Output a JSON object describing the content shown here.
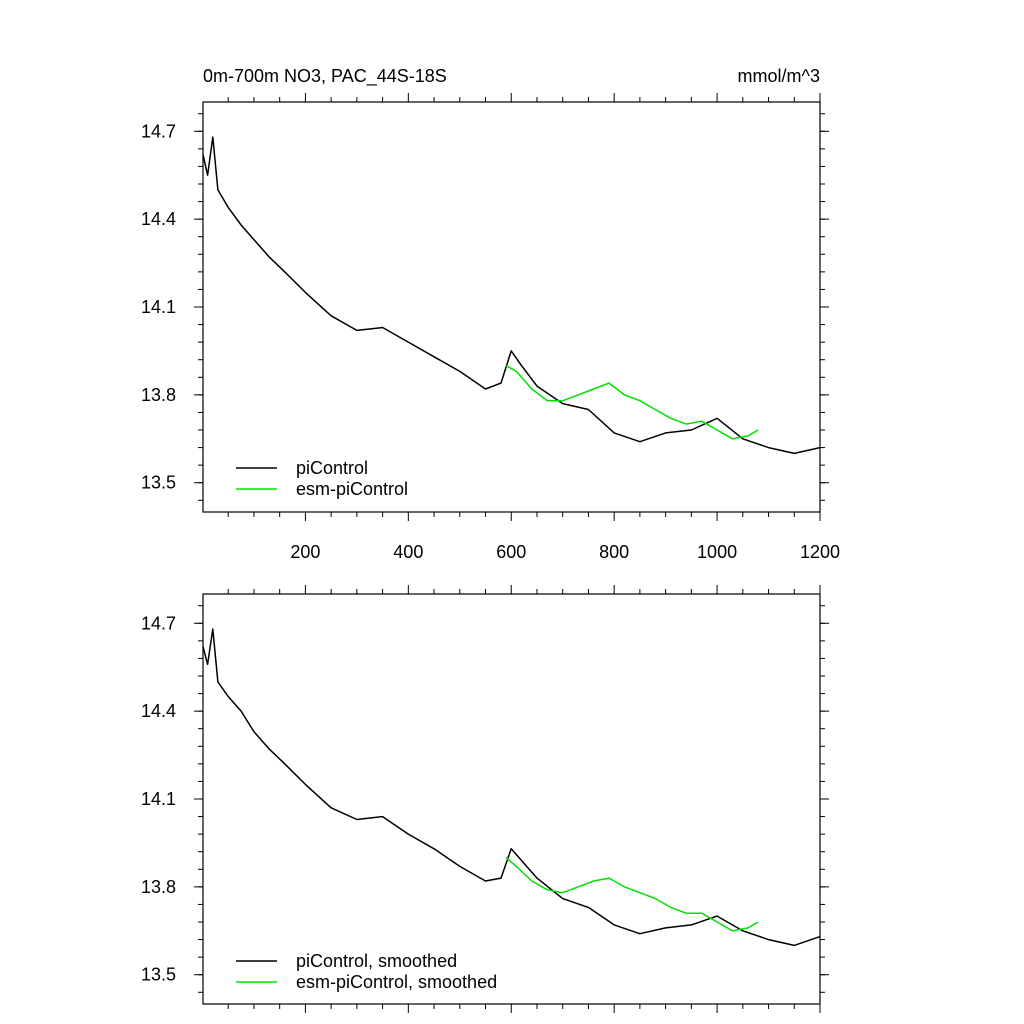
{
  "title": "0m-700m NO3, PAC_44S-18S",
  "units": "mmol/m^3",
  "colors": {
    "piControl": "#000000",
    "esm": "#00e000"
  },
  "chart_data": [
    {
      "type": "line",
      "title": "0m-700m NO3, PAC_44S-18S",
      "units": "mmol/m^3",
      "xlim": [
        1,
        1200
      ],
      "ylim": [
        13.4,
        14.8
      ],
      "xticks": [
        200,
        400,
        600,
        800,
        1000,
        1200
      ],
      "xtick_labels": [
        "200",
        "400",
        "600",
        "800",
        "1000",
        "1200"
      ],
      "yticks": [
        13.5,
        13.8,
        14.1,
        14.4,
        14.7
      ],
      "ytick_labels": [
        "13.5",
        "13.8",
        "14.1",
        "14.4",
        "14.7"
      ],
      "legend": "bottom-left",
      "grid": false,
      "series": [
        {
          "name": "piControl",
          "color": "#000000",
          "x": [
            1,
            10,
            20,
            30,
            50,
            75,
            100,
            130,
            160,
            200,
            250,
            300,
            350,
            400,
            450,
            500,
            550,
            580,
            600,
            620,
            650,
            700,
            750,
            800,
            850,
            900,
            950,
            1000,
            1050,
            1100,
            1150,
            1200
          ],
          "y": [
            14.62,
            14.55,
            14.68,
            14.5,
            14.44,
            14.38,
            14.33,
            14.27,
            14.22,
            14.15,
            14.07,
            14.02,
            14.03,
            13.98,
            13.93,
            13.88,
            13.82,
            13.84,
            13.95,
            13.9,
            13.83,
            13.77,
            13.75,
            13.67,
            13.64,
            13.67,
            13.68,
            13.72,
            13.65,
            13.62,
            13.6,
            13.62
          ]
        },
        {
          "name": "esm-piControl",
          "color": "#00e000",
          "x": [
            590,
            610,
            640,
            670,
            700,
            730,
            760,
            790,
            820,
            850,
            880,
            910,
            940,
            970,
            1000,
            1030,
            1060,
            1080
          ],
          "y": [
            13.9,
            13.88,
            13.82,
            13.78,
            13.78,
            13.8,
            13.82,
            13.84,
            13.8,
            13.78,
            13.75,
            13.72,
            13.7,
            13.71,
            13.68,
            13.65,
            13.66,
            13.68
          ]
        }
      ]
    },
    {
      "type": "line",
      "xlim": [
        1,
        1200
      ],
      "ylim": [
        13.4,
        14.8
      ],
      "xticks": [
        200,
        400,
        600,
        800,
        1000,
        1200
      ],
      "yticks": [
        13.5,
        13.8,
        14.1,
        14.4,
        14.7
      ],
      "ytick_labels": [
        "13.5",
        "13.8",
        "14.1",
        "14.4",
        "14.7"
      ],
      "legend": "bottom-left",
      "grid": false,
      "series": [
        {
          "name": "piControl, smoothed",
          "color": "#000000",
          "x": [
            1,
            10,
            20,
            30,
            50,
            75,
            100,
            130,
            160,
            200,
            250,
            300,
            350,
            400,
            450,
            500,
            550,
            580,
            600,
            620,
            650,
            700,
            750,
            800,
            850,
            900,
            950,
            1000,
            1050,
            1100,
            1150,
            1200
          ],
          "y": [
            14.62,
            14.56,
            14.68,
            14.5,
            14.45,
            14.4,
            14.33,
            14.27,
            14.22,
            14.15,
            14.07,
            14.03,
            14.04,
            13.98,
            13.93,
            13.87,
            13.82,
            13.83,
            13.93,
            13.89,
            13.83,
            13.76,
            13.73,
            13.67,
            13.64,
            13.66,
            13.67,
            13.7,
            13.65,
            13.62,
            13.6,
            13.63
          ]
        },
        {
          "name": "esm-piControl, smoothed",
          "color": "#00e000",
          "x": [
            590,
            610,
            640,
            670,
            700,
            730,
            760,
            790,
            820,
            850,
            880,
            910,
            940,
            970,
            1000,
            1030,
            1060,
            1080
          ],
          "y": [
            13.9,
            13.87,
            13.82,
            13.79,
            13.78,
            13.8,
            13.82,
            13.83,
            13.8,
            13.78,
            13.76,
            13.73,
            13.71,
            13.71,
            13.68,
            13.65,
            13.66,
            13.68
          ]
        }
      ]
    }
  ]
}
